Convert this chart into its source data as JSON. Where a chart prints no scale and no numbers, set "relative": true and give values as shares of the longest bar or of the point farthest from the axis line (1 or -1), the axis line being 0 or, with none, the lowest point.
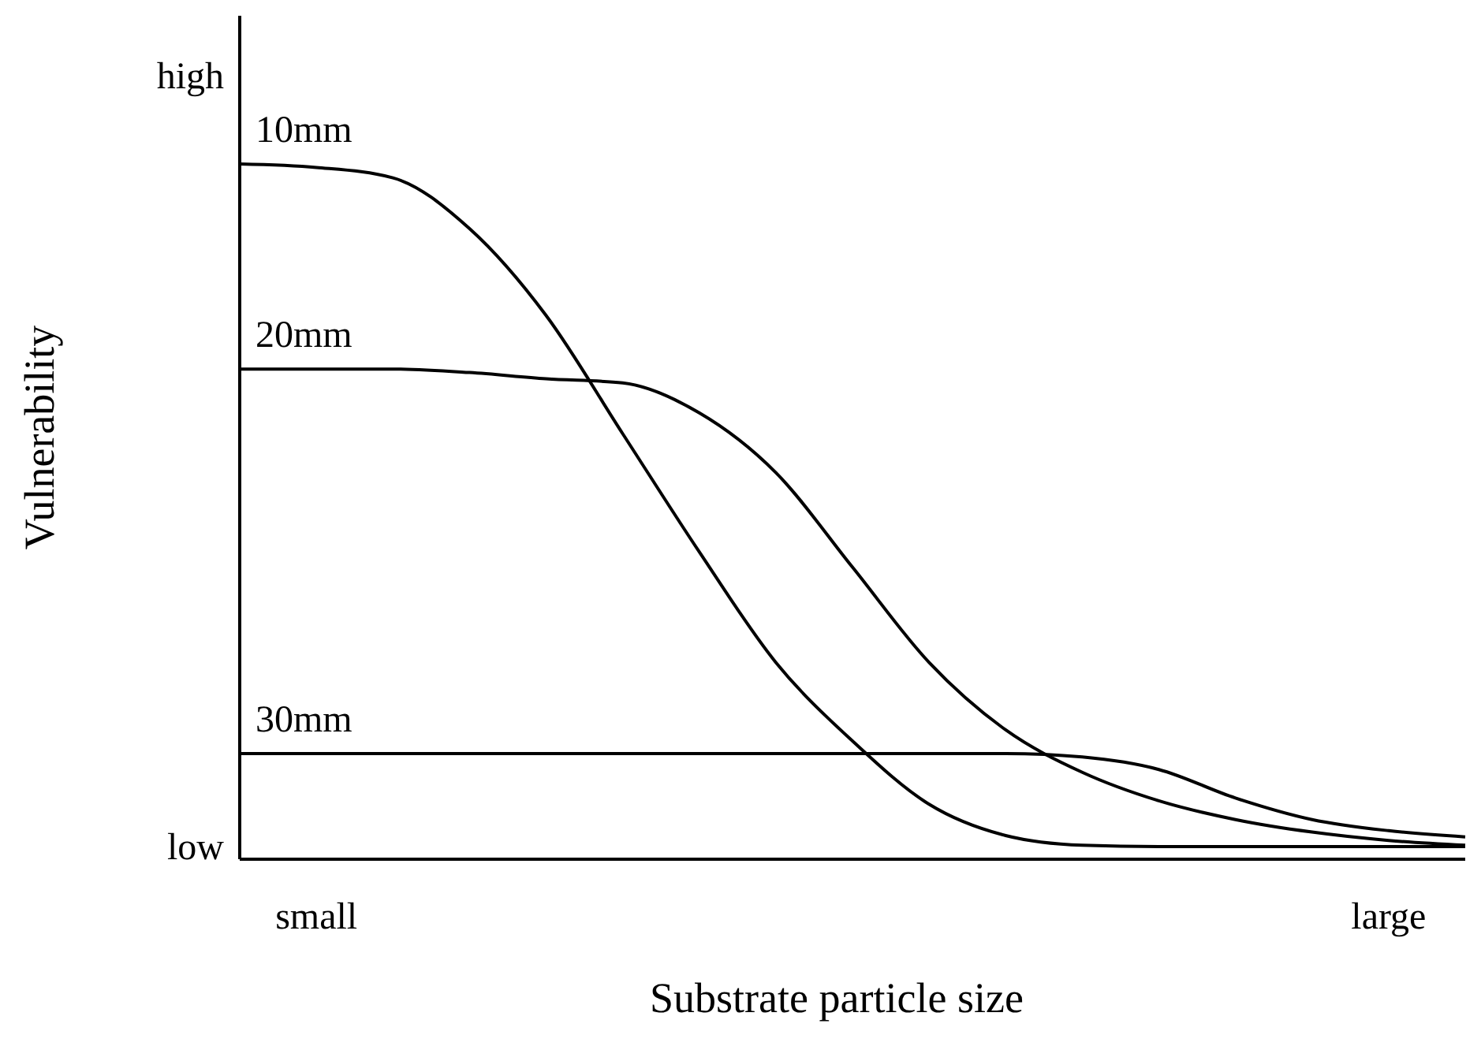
{
  "chart_data": {
    "type": "line",
    "relative": true,
    "xlabel": "Substrate particle size",
    "ylabel": "Vulnerability",
    "categories": [
      null,
      "small",
      null,
      null,
      null,
      null,
      null,
      null,
      null,
      null,
      null,
      null,
      null,
      null,
      null,
      "large",
      null
    ],
    "series": [
      {
        "name": "10mm",
        "color": "#000000",
        "values": [
          1,
          0.995,
          0.98,
          0.907,
          0.782,
          0.612,
          0.442,
          0.283,
          0.17,
          0.079,
          0.034,
          0.02,
          0.018,
          0.018,
          0.018,
          0.018,
          0.018
        ]
      },
      {
        "name": "20mm",
        "color": "#000000",
        "values": [
          0.705,
          0.705,
          0.705,
          0.7,
          0.691,
          0.685,
          0.642,
          0.556,
          0.42,
          0.283,
          0.186,
          0.125,
          0.084,
          0.057,
          0.039,
          0.027,
          0.02
        ]
      },
      {
        "name": "30mm",
        "color": "#000000",
        "values": [
          0.152,
          0.152,
          0.152,
          0.152,
          0.152,
          0.152,
          0.152,
          0.152,
          0.152,
          0.152,
          0.152,
          0.147,
          0.129,
          0.088,
          0.057,
          0.041,
          0.032
        ]
      }
    ],
    "annotations": [
      "high",
      "low"
    ],
    "legend": false,
    "marker": "none",
    "line_style": "solid"
  }
}
